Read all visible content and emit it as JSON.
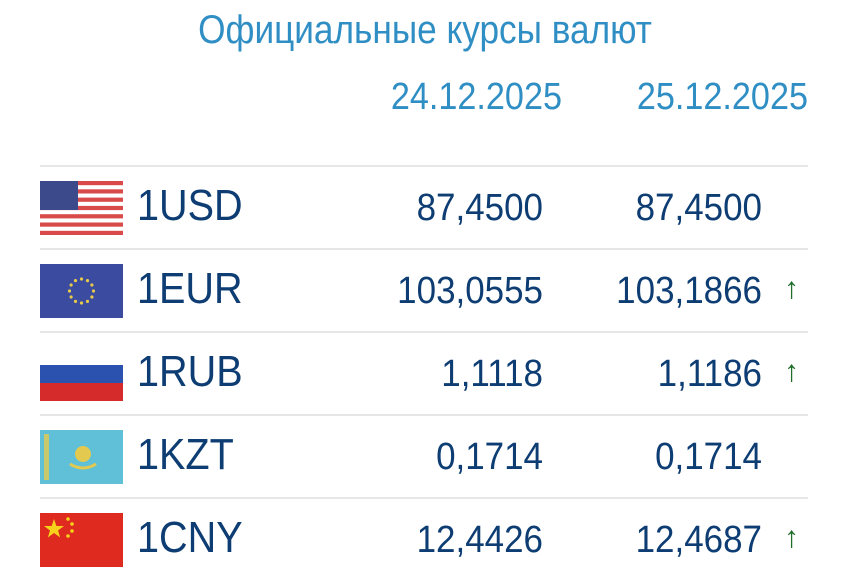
{
  "title": "Официальные курсы валют",
  "dates": [
    "24.12.2025",
    "25.12.2025"
  ],
  "colors": {
    "title": "#2f8ec4",
    "text": "#0d3d73",
    "up": "#1e6e2a"
  },
  "rows": [
    {
      "code": "1USD",
      "flag": "us-flag-icon",
      "v1": "87,4500",
      "v2": "87,4500",
      "trend": ""
    },
    {
      "code": "1EUR",
      "flag": "eu-flag-icon",
      "v1": "103,0555",
      "v2": "103,1866",
      "trend": "↑"
    },
    {
      "code": "1RUB",
      "flag": "ru-flag-icon",
      "v1": "1,1118",
      "v2": "1,1186",
      "trend": "↑"
    },
    {
      "code": "1KZT",
      "flag": "kz-flag-icon",
      "v1": "0,1714",
      "v2": "0,1714",
      "trend": ""
    },
    {
      "code": "1CNY",
      "flag": "cn-flag-icon",
      "v1": "12,4426",
      "v2": "12,4687",
      "trend": "↑"
    }
  ]
}
